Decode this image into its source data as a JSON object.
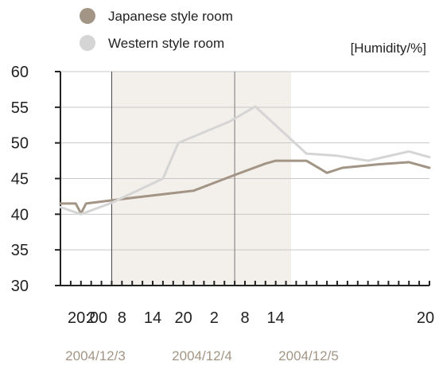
{
  "chart_data": {
    "type": "line",
    "unit_label": "[Humidity/%]",
    "ylim": [
      30,
      60
    ],
    "y_ticks": [
      30,
      35,
      40,
      45,
      50,
      55,
      60
    ],
    "x_tick_labels": [
      "20:00",
      "2",
      "8",
      "14",
      "20",
      "2",
      "8",
      "14",
      "20"
    ],
    "date_labels": [
      "2004/12/3",
      "2004/12/4",
      "2004/12/5"
    ],
    "grid": true,
    "legend_position": "top-left",
    "series": [
      {
        "name": "Japanese style room",
        "color": "#a39585",
        "points": [
          [
            0,
            41.5
          ],
          [
            3,
            41.5
          ],
          [
            4,
            40.1
          ],
          [
            5,
            41.5
          ],
          [
            14,
            42.3
          ],
          [
            26,
            43.3
          ],
          [
            34,
            45.5
          ],
          [
            40,
            47.1
          ],
          [
            42,
            47.5
          ],
          [
            48,
            47.5
          ],
          [
            52,
            45.8
          ],
          [
            55,
            46.5
          ],
          [
            62,
            47.0
          ],
          [
            68,
            47.3
          ],
          [
            72,
            46.5
          ]
        ]
      },
      {
        "name": "Western style room",
        "color": "#d6d5d6",
        "points": [
          [
            0,
            41.0
          ],
          [
            4,
            40.0
          ],
          [
            10,
            41.6
          ],
          [
            20,
            45.0
          ],
          [
            23,
            50.0
          ],
          [
            33,
            53.0
          ],
          [
            38,
            55.1
          ],
          [
            48,
            48.5
          ],
          [
            54,
            48.2
          ],
          [
            60,
            47.5
          ],
          [
            68,
            48.8
          ],
          [
            72,
            48.0
          ]
        ]
      }
    ],
    "shaded_bands": [
      {
        "from": 10,
        "to": 34,
        "color": "#f3efea"
      },
      {
        "from": 34,
        "to": 45,
        "color": "#f3efea"
      }
    ],
    "vertical_markers": [
      {
        "at": 10,
        "color": "#444444"
      },
      {
        "at": 34,
        "color": "#777777"
      }
    ]
  }
}
